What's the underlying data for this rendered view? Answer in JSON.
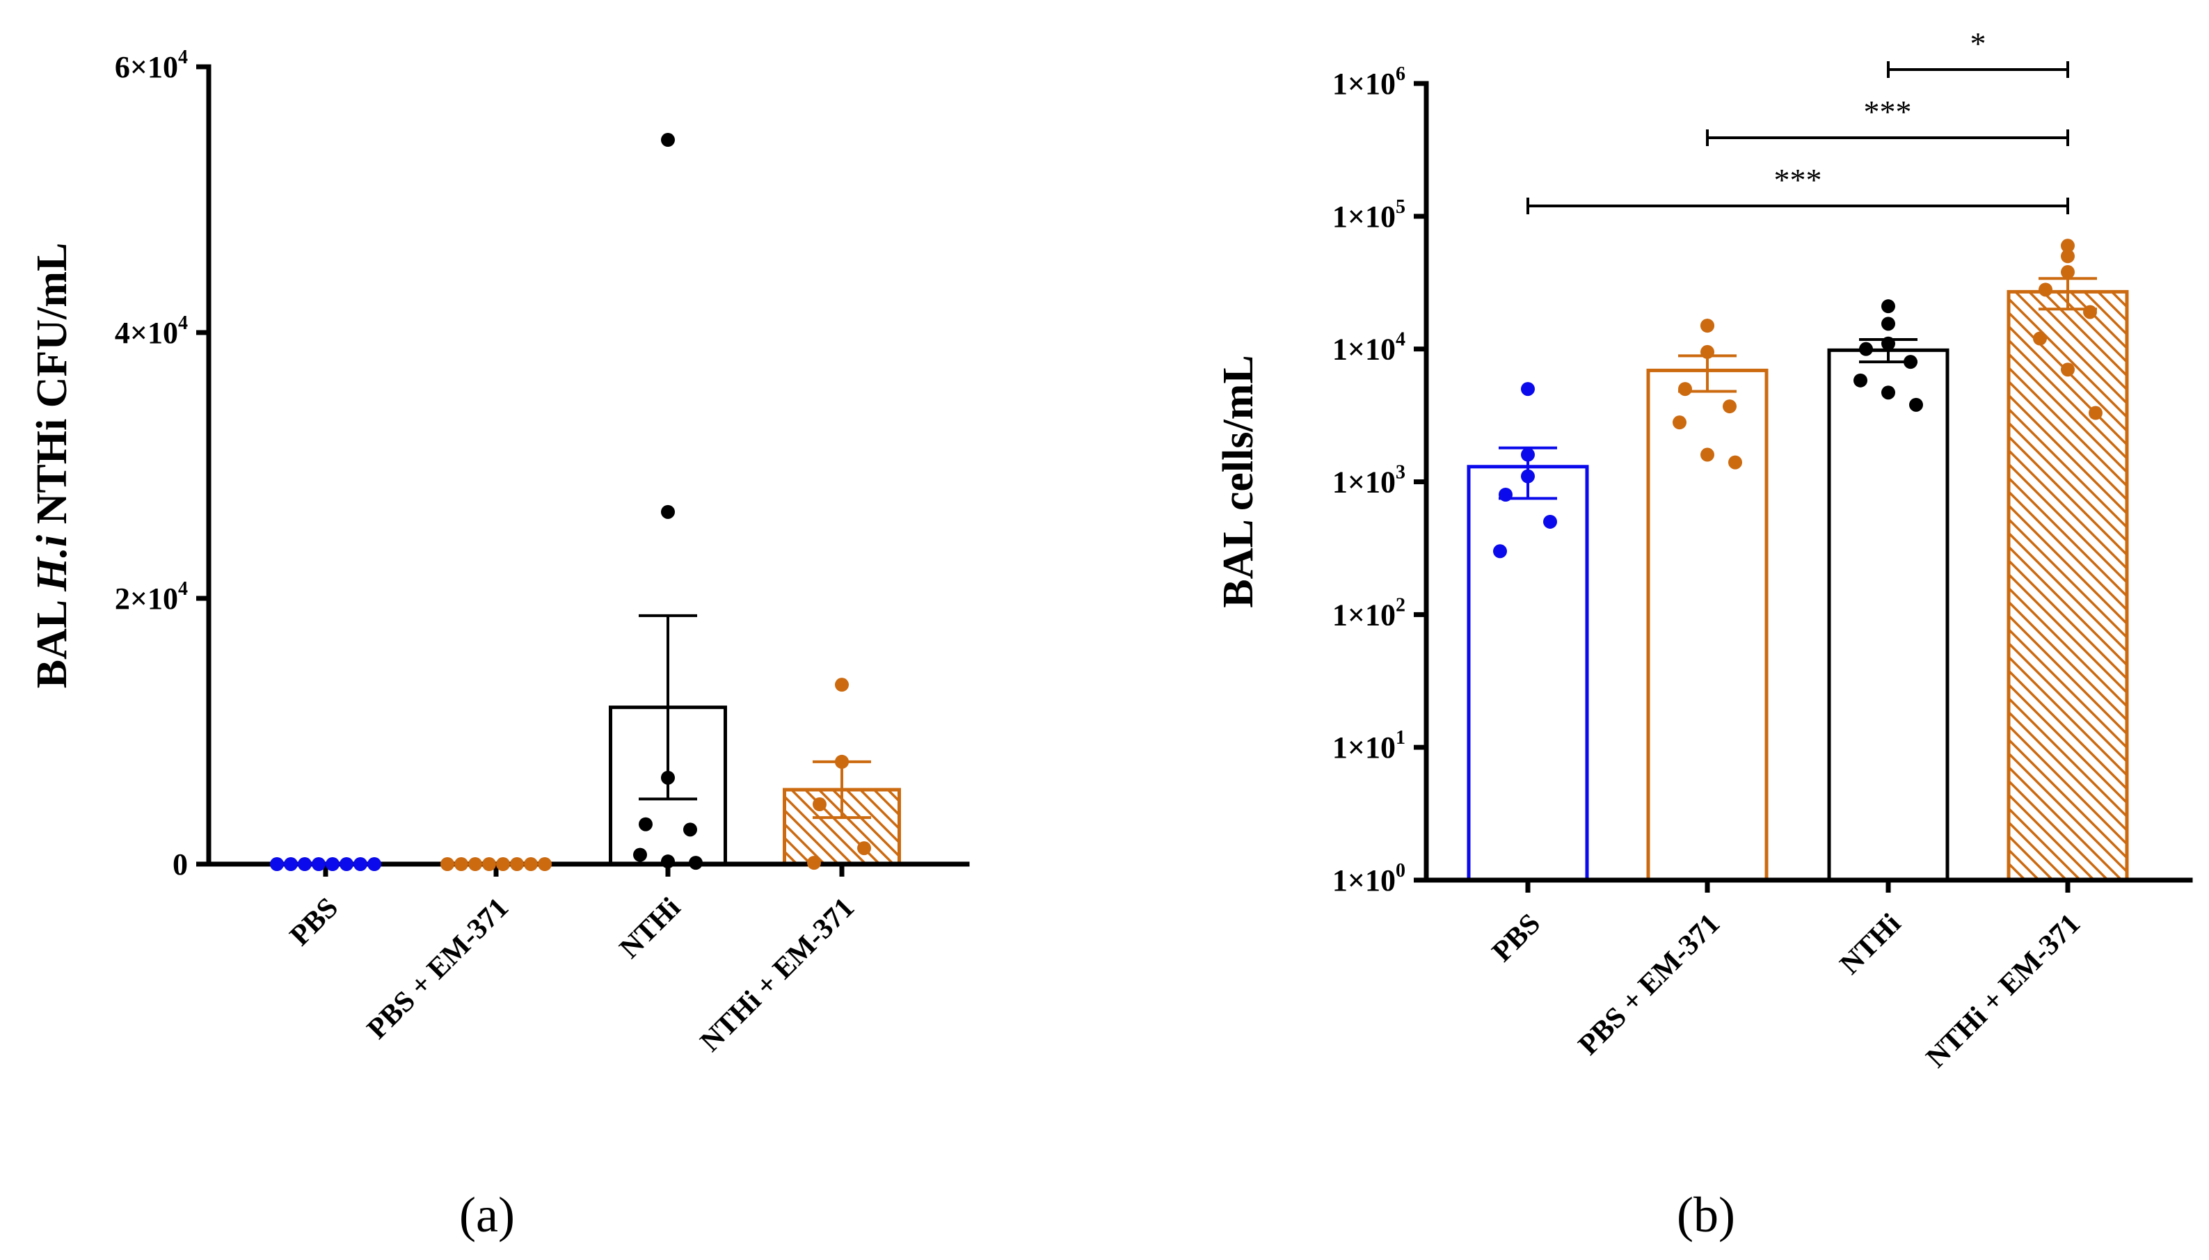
{
  "colors": {
    "PBS": "#0a0aec",
    "EM": "#cc6a10",
    "NTHi": "#000000"
  },
  "chart_data": [
    {
      "type": "bar",
      "panel_label": "(a)",
      "ylabel_parts": [
        "BAL ",
        "H.i",
        " NTHi CFU/mL"
      ],
      "yscale": "linear",
      "ylim": [
        0,
        60000
      ],
      "yticks": [
        {
          "value": 0,
          "base": "0",
          "exp": ""
        },
        {
          "value": 20000,
          "base": "2×10",
          "exp": "4"
        },
        {
          "value": 40000,
          "base": "4×10",
          "exp": "4"
        },
        {
          "value": 60000,
          "base": "6×10",
          "exp": "4"
        }
      ],
      "categories": [
        "PBS",
        "PBS + EM-371",
        "NTHi",
        "NTHi + EM-371"
      ],
      "series": [
        {
          "name": "PBS",
          "color_key": "PBS",
          "hatched": false,
          "bar": 0,
          "sem": 0,
          "points": [
            0,
            0,
            0,
            0,
            0,
            0,
            0,
            0
          ]
        },
        {
          "name": "PBS + EM-371",
          "color_key": "EM",
          "hatched": false,
          "bar": 0,
          "sem": 0,
          "points": [
            0,
            0,
            0,
            0,
            0,
            0,
            0,
            0
          ]
        },
        {
          "name": "NTHi",
          "color_key": "NTHi",
          "hatched": false,
          "bar": 11800,
          "sem": 6900,
          "points": [
            54500,
            26500,
            6500,
            3000,
            2600,
            700,
            200,
            100
          ]
        },
        {
          "name": "NTHi + EM-371",
          "color_key": "EM",
          "hatched": true,
          "bar": 5600,
          "sem": 2100,
          "points": [
            13500,
            7700,
            7700,
            4500,
            1200,
            100
          ]
        }
      ],
      "significance": []
    },
    {
      "type": "bar",
      "panel_label": "(b)",
      "ylabel_parts": [
        "BAL cells/mL"
      ],
      "yscale": "log",
      "ylim": [
        1,
        1000000
      ],
      "yticks": [
        {
          "value": 1,
          "base": "1×10",
          "exp": "0"
        },
        {
          "value": 10,
          "base": "1×10",
          "exp": "1"
        },
        {
          "value": 100,
          "base": "1×10",
          "exp": "2"
        },
        {
          "value": 1000,
          "base": "1×10",
          "exp": "3"
        },
        {
          "value": 10000,
          "base": "1×10",
          "exp": "4"
        },
        {
          "value": 100000,
          "base": "1×10",
          "exp": "5"
        },
        {
          "value": 1000000,
          "base": "1×10",
          "exp": "6"
        }
      ],
      "categories": [
        "PBS",
        "PBS + EM-371",
        "NTHi",
        "NTHi + EM-371"
      ],
      "series": [
        {
          "name": "PBS",
          "color_key": "PBS",
          "hatched": false,
          "bar": 1300,
          "sem_lo": 750,
          "sem_hi": 1800,
          "points": [
            5000,
            1600,
            1100,
            800,
            500,
            300
          ]
        },
        {
          "name": "PBS + EM-371",
          "color_key": "EM",
          "hatched": false,
          "bar": 6900,
          "sem_lo": 4800,
          "sem_hi": 8900,
          "points": [
            15000,
            15000,
            9500,
            5000,
            3700,
            2800,
            1600,
            1400
          ]
        },
        {
          "name": "NTHi",
          "color_key": "NTHi",
          "hatched": false,
          "bar": 9800,
          "sem_lo": 8000,
          "sem_hi": 11800,
          "points": [
            21000,
            15500,
            11000,
            10000,
            8000,
            5800,
            4700,
            3800
          ]
        },
        {
          "name": "NTHi + EM-371",
          "color_key": "EM",
          "hatched": true,
          "bar": 27000,
          "sem_lo": 20000,
          "sem_hi": 34000,
          "points": [
            60000,
            50000,
            38000,
            28000,
            19000,
            12000,
            7000,
            3300
          ]
        }
      ],
      "significance": [
        {
          "from": 2,
          "to": 3,
          "label": "*"
        },
        {
          "from": 1,
          "to": 3,
          "label": "***"
        },
        {
          "from": 0,
          "to": 3,
          "label": "***"
        }
      ]
    }
  ]
}
